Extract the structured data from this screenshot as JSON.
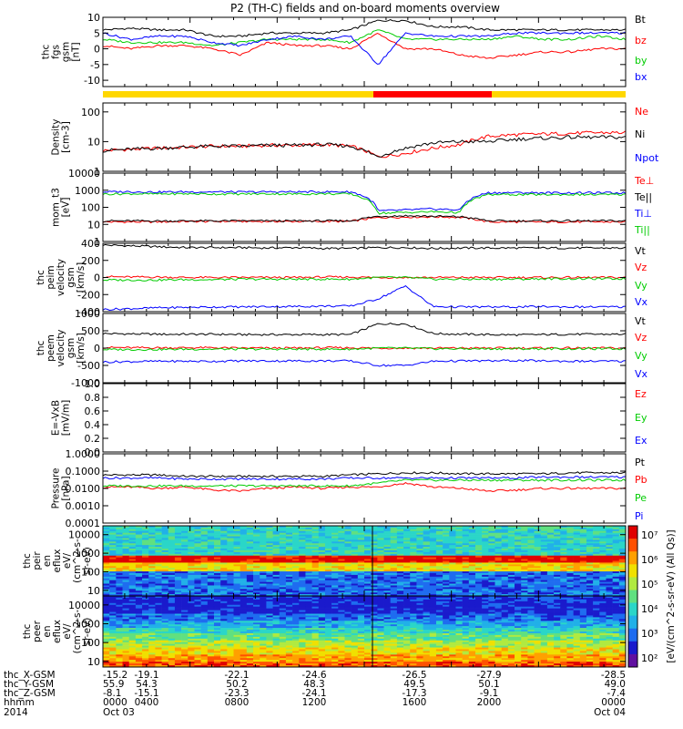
{
  "title": "P2 (TH-C) fields and on-board moments overview",
  "chart_data": [
    {
      "id": "fgs",
      "type": "line",
      "ylabel_lines": [
        "thc",
        "fgs",
        "gsm",
        "[nT]"
      ],
      "ylim": [
        -12,
        10
      ],
      "y_ticks": [
        10,
        5,
        0,
        -5,
        -10
      ],
      "y_tick_labels": [
        "10",
        "5",
        "0",
        "-5",
        "-10"
      ],
      "series": [
        {
          "name": "Bt",
          "color": "#000000",
          "values": [
            6,
            6.5,
            6,
            6,
            4,
            4,
            5,
            5,
            5,
            6,
            9,
            9,
            7,
            7,
            6,
            6,
            6,
            6,
            6,
            6
          ]
        },
        {
          "name": "bz",
          "color": "#ff0000",
          "values": [
            1,
            0,
            1,
            1,
            0,
            -2,
            2,
            1,
            1,
            0,
            5,
            0,
            0,
            -2,
            -3,
            -2,
            -1,
            -1,
            0,
            0
          ]
        },
        {
          "name": "by",
          "color": "#00cc00",
          "values": [
            3,
            2,
            2,
            2,
            1,
            2,
            3,
            3,
            3,
            2,
            6,
            3,
            3,
            3,
            3,
            4,
            3,
            3,
            4,
            3
          ]
        },
        {
          "name": "bx",
          "color": "#0000ff",
          "values": [
            5,
            3,
            4,
            4,
            2,
            1,
            3,
            4,
            3,
            4,
            -5,
            5,
            4,
            4,
            4,
            5,
            5,
            5,
            5,
            5
          ]
        }
      ]
    },
    {
      "id": "density",
      "type": "line",
      "log": true,
      "ylabel_lines": [
        "Density",
        "[cm-3]"
      ],
      "ylim": [
        1,
        200
      ],
      "y_ticks": [
        100,
        10,
        1
      ],
      "y_tick_labels": [
        "100",
        "10",
        "1"
      ],
      "series": [
        {
          "name": "Ne",
          "color": "#ff0000",
          "values": [
            5,
            5.5,
            6,
            6.5,
            7,
            7,
            7.5,
            7.5,
            8,
            7,
            3,
            4,
            6,
            8,
            15,
            17,
            18,
            19,
            20,
            20
          ]
        },
        {
          "name": "Ni",
          "color": "#000000",
          "values": [
            5,
            5.5,
            6,
            6.5,
            7,
            7,
            7.5,
            7.5,
            8,
            7,
            3,
            6,
            9,
            10,
            10,
            12,
            13,
            14,
            14,
            14
          ]
        },
        {
          "name": "Npot",
          "color": "#0000ff",
          "values": []
        }
      ]
    },
    {
      "id": "mom_temp",
      "type": "line",
      "log": true,
      "ylabel_lines": [
        "mom_t3",
        "[eV]"
      ],
      "ylim": [
        1,
        10000
      ],
      "y_ticks": [
        10000,
        1000,
        100,
        10,
        1
      ],
      "y_tick_labels": [
        "10000",
        "1000",
        "100",
        "10",
        "1"
      ],
      "series": [
        {
          "name": "Te⊥",
          "color": "#ff0000",
          "values": [
            14,
            14,
            14,
            15,
            15,
            15,
            15,
            15,
            15,
            15,
            25,
            27,
            28,
            26,
            14,
            14,
            14,
            14,
            14,
            14
          ]
        },
        {
          "name": "Te||",
          "color": "#000000",
          "values": [
            16,
            16,
            16,
            16,
            16,
            16,
            16,
            16,
            16,
            16,
            30,
            32,
            30,
            28,
            16,
            16,
            16,
            16,
            16,
            16
          ]
        },
        {
          "name": "Ti⊥",
          "color": "#0000ff",
          "values": [
            800,
            820,
            780,
            800,
            800,
            780,
            800,
            800,
            800,
            800,
            60,
            70,
            80,
            70,
            700,
            720,
            700,
            700,
            700,
            700
          ]
        },
        {
          "name": "Ti||",
          "color": "#00cc00",
          "values": [
            600,
            620,
            600,
            620,
            600,
            600,
            620,
            600,
            620,
            600,
            45,
            50,
            55,
            50,
            550,
            560,
            550,
            560,
            550,
            560
          ]
        }
      ]
    },
    {
      "id": "peim_velocity",
      "type": "line",
      "ylabel_lines": [
        "thc",
        "peim",
        "velocity",
        "gsm",
        "[km/s]"
      ],
      "ylim": [
        -400,
        400
      ],
      "y_ticks": [
        400,
        200,
        0,
        -200,
        -400
      ],
      "y_tick_labels": [
        "400",
        "200",
        "0",
        "-200",
        "-400"
      ],
      "series": [
        {
          "name": "Vt",
          "color": "#000000",
          "values": [
            380,
            370,
            360,
            350,
            350,
            350,
            345,
            350,
            340,
            340,
            350,
            350,
            340,
            345,
            345,
            345,
            345,
            345,
            345,
            345
          ]
        },
        {
          "name": "Vz",
          "color": "#ff0000",
          "values": [
            10,
            5,
            5,
            0,
            0,
            0,
            0,
            0,
            5,
            5,
            0,
            0,
            0,
            0,
            0,
            0,
            0,
            0,
            0,
            0
          ]
        },
        {
          "name": "Vy",
          "color": "#00cc00",
          "values": [
            -30,
            -30,
            -30,
            -25,
            -25,
            -20,
            -20,
            -20,
            -20,
            -20,
            0,
            0,
            -20,
            -20,
            -20,
            -20,
            -15,
            -15,
            -15,
            -15
          ]
        },
        {
          "name": "Vx",
          "color": "#0000ff",
          "values": [
            -375,
            -365,
            -355,
            -350,
            -345,
            -345,
            -340,
            -340,
            -335,
            -335,
            -250,
            -100,
            -340,
            -345,
            -345,
            -345,
            -340,
            -345,
            -345,
            -345
          ]
        }
      ]
    },
    {
      "id": "peem_velocity",
      "type": "line",
      "ylabel_lines": [
        "thc",
        "peem",
        "velocity",
        "gsm",
        "[km/s]"
      ],
      "ylim": [
        -1000,
        1000
      ],
      "y_ticks": [
        1000,
        500,
        0,
        -500,
        -1000
      ],
      "y_tick_labels": [
        "1000",
        "500",
        "0",
        "-500",
        "-1000"
      ],
      "series": [
        {
          "name": "Vt",
          "color": "#000000",
          "values": [
            420,
            410,
            400,
            400,
            400,
            390,
            390,
            390,
            390,
            390,
            700,
            700,
            420,
            400,
            390,
            380,
            390,
            400,
            400,
            400
          ]
        },
        {
          "name": "Vz",
          "color": "#ff0000",
          "values": [
            20,
            10,
            10,
            10,
            10,
            0,
            0,
            0,
            10,
            10,
            0,
            0,
            0,
            0,
            0,
            0,
            0,
            0,
            0,
            0
          ]
        },
        {
          "name": "Vy",
          "color": "#00cc00",
          "values": [
            -40,
            -40,
            -40,
            -30,
            -30,
            -30,
            -30,
            -30,
            -30,
            -30,
            0,
            0,
            -20,
            -20,
            -20,
            -20,
            -20,
            -20,
            -20,
            -20
          ]
        },
        {
          "name": "Vx",
          "color": "#0000ff",
          "values": [
            -400,
            -390,
            -380,
            -380,
            -380,
            -370,
            -370,
            -370,
            -370,
            -370,
            -500,
            -500,
            -380,
            -370,
            -370,
            -360,
            -370,
            -380,
            -380,
            -380
          ]
        }
      ]
    },
    {
      "id": "efield",
      "type": "line",
      "ylabel_lines": [
        "E=-VxB",
        "[mV/m]"
      ],
      "ylim": [
        0,
        1
      ],
      "y_ticks": [
        1.0,
        0.8,
        0.6,
        0.4,
        0.2,
        0.0
      ],
      "y_tick_labels": [
        "1.0",
        "0.8",
        "0.6",
        "0.4",
        "0.2",
        "0.0"
      ],
      "series": [
        {
          "name": "Ez",
          "color": "#ff0000",
          "values": []
        },
        {
          "name": "Ey",
          "color": "#00cc00",
          "values": []
        },
        {
          "name": "Ex",
          "color": "#0000ff",
          "values": []
        }
      ]
    },
    {
      "id": "pressure",
      "type": "line",
      "log": true,
      "ylabel_lines": [
        "Pressure",
        "[nPa]"
      ],
      "ylim": [
        0.0001,
        1
      ],
      "y_ticks": [
        1,
        0.1,
        0.01,
        0.001,
        0.0001
      ],
      "y_tick_labels": [
        "1.0000",
        "0.1000",
        "0.0100",
        "0.0010",
        "0.0001"
      ],
      "series": [
        {
          "name": "Pt",
          "color": "#000000",
          "values": [
            0.06,
            0.06,
            0.06,
            0.05,
            0.05,
            0.05,
            0.05,
            0.05,
            0.05,
            0.06,
            0.07,
            0.08,
            0.08,
            0.07,
            0.07,
            0.07,
            0.07,
            0.08,
            0.08,
            0.08
          ]
        },
        {
          "name": "Pb",
          "color": "#ff0000",
          "values": [
            0.012,
            0.012,
            0.01,
            0.012,
            0.008,
            0.007,
            0.01,
            0.012,
            0.01,
            0.012,
            0.012,
            0.02,
            0.012,
            0.01,
            0.007,
            0.008,
            0.01,
            0.01,
            0.01,
            0.01
          ]
        },
        {
          "name": "Pe",
          "color": "#00cc00",
          "values": [
            0.014,
            0.014,
            0.014,
            0.014,
            0.014,
            0.014,
            0.014,
            0.014,
            0.014,
            0.014,
            0.02,
            0.03,
            0.03,
            0.03,
            0.03,
            0.03,
            0.03,
            0.03,
            0.03,
            0.03
          ]
        },
        {
          "name": "Pi",
          "color": "#0000ff",
          "values": [
            0.04,
            0.04,
            0.04,
            0.035,
            0.035,
            0.035,
            0.035,
            0.035,
            0.035,
            0.04,
            0.04,
            0.04,
            0.04,
            0.04,
            0.04,
            0.04,
            0.045,
            0.045,
            0.045,
            0.045
          ]
        }
      ]
    },
    {
      "id": "peir_eflux",
      "type": "heatmap",
      "ylabel_lines": [
        "thc",
        "peir",
        "en",
        "eflux",
        "eV/",
        "(cm^2-s-",
        "sr-eV)"
      ],
      "y_ticks": [
        10000,
        1000,
        100,
        10
      ],
      "y_tick_labels": [
        "10000",
        "1000",
        "100",
        "10"
      ]
    },
    {
      "id": "peer_eflux",
      "type": "heatmap",
      "ylabel_lines": [
        "thc",
        "peer",
        "en",
        "eflux",
        "eV/",
        "(cm^2-s-",
        "sr-eV)"
      ],
      "y_ticks": [
        10000,
        1000,
        100,
        10
      ],
      "y_tick_labels": [
        "10000",
        "1000",
        "100",
        "10"
      ]
    }
  ],
  "colorbar": {
    "label": "[eV/(cm^2-s-sr-eV) (All Qs)]",
    "ticks": [
      "10⁷",
      "10⁶",
      "10⁵",
      "10⁴",
      "10³",
      "10²"
    ]
  },
  "footer": {
    "rows": [
      {
        "label": "thc_X-GSM",
        "values": [
          "-15.2",
          "-19.1",
          "-22.1",
          "-24.6",
          "-26.5",
          "-27.9",
          "-28.5"
        ]
      },
      {
        "label": "thc_Y-GSM",
        "values": [
          "55.9",
          "54.3",
          "50.2",
          "48.3",
          "49.5",
          "50.1",
          "49.0"
        ]
      },
      {
        "label": "thc_Z-GSM",
        "values": [
          "-8.1",
          "-15.1",
          "-23.3",
          "-24.1",
          "-17.3",
          "-9.1",
          "-7.4"
        ]
      },
      {
        "label": "hhmm",
        "values": [
          "0000",
          "0400",
          "0800",
          "1200",
          "1600",
          "2000",
          "0000"
        ]
      },
      {
        "label": "2014",
        "values": [
          "Oct 03",
          "",
          "",
          "",
          "",
          "",
          "Oct 04"
        ]
      }
    ]
  }
}
